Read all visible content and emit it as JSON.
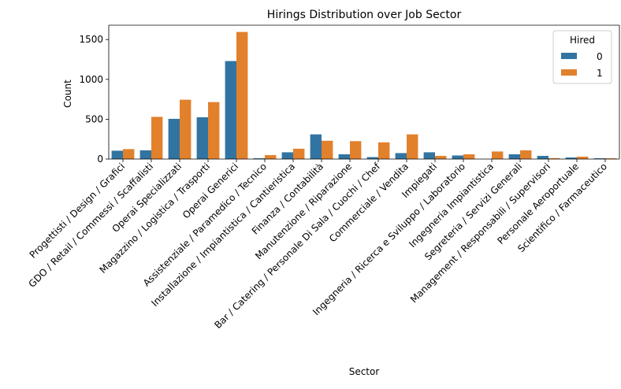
{
  "chart_data": {
    "type": "bar",
    "title": "Hirings Distribution over Job Sector",
    "xlabel": "Sector",
    "ylabel": "Count",
    "ylim": [
      0,
      1680
    ],
    "yticks": [
      0,
      500,
      1000,
      1500
    ],
    "legend": {
      "title": "Hired",
      "placement": "top-right"
    },
    "categories": [
      "Progettisti / Design / Grafici",
      "GDO / Retail / Commessi / Scaffalisti",
      "Operai Specializzati",
      "Magazzino / Logistica / Trasporti",
      "Operai Generici",
      "Assistenziale / Paramedico / Tecnico",
      "Installazione / Impiantistica / Cantieristica",
      "Finanza / Contabilità",
      "Manutenzione / Riparazione",
      "Bar / Catering / Personale Di Sala / Cuochi / Chef",
      "Commerciale / Vendita",
      "Impiegati",
      "Ingegneria / Ricerca e Sviluppo / Laboratorio",
      "Ingegneria Impiantistica",
      "Segreteria / Servizi Generali",
      "Management / Responsabili / Supervisori",
      "Personale Aeroportuale",
      "Scientifico / Farmaceutico"
    ],
    "series": [
      {
        "name": "0",
        "color": "#3274a1",
        "values": [
          105,
          110,
          505,
          525,
          1230,
          10,
          85,
          310,
          60,
          25,
          75,
          85,
          45,
          2,
          60,
          40,
          20,
          10
        ]
      },
      {
        "name": "1",
        "color": "#e1812c",
        "values": [
          125,
          530,
          745,
          715,
          1595,
          50,
          130,
          230,
          225,
          210,
          310,
          40,
          60,
          95,
          110,
          12,
          30,
          10
        ]
      }
    ]
  }
}
